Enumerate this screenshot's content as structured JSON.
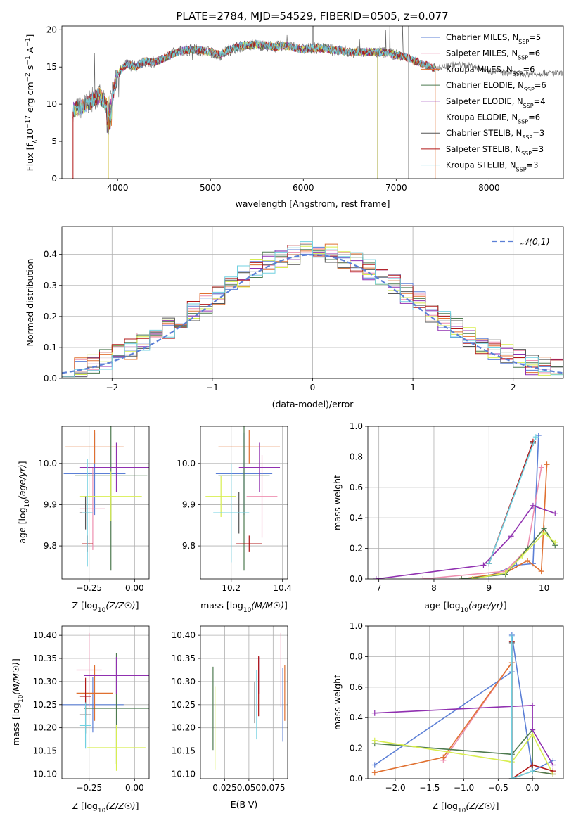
{
  "figure_title": "PLATE=2784, MJD=54529, FIBERID=0505, z=0.077",
  "colors": {
    "series": [
      "#5b7fd6",
      "#ee8fb0",
      "#e07030",
      "#4e7a50",
      "#9030b0",
      "#d8ee50",
      "#555555",
      "#b01818",
      "#70d0e0"
    ]
  },
  "chart_data": [
    {
      "id": "spectrum",
      "type": "line",
      "title": "PLATE=2784, MJD=54529, FIBERID=0505, z=0.077",
      "xlabel": "wavelength [Angstrom, rest frame]",
      "ylabel": "Flux [f_λ 10^-17 erg cm^-2 s^-1 A^-1]",
      "ylabel_parts": {
        "pre": "Flux [f",
        "sub": "λ",
        "mid": "10",
        "sup1": "−17",
        "mid2": " erg cm",
        "sup2": "−2",
        "mid3": " s",
        "sup3": "−1",
        "mid4": " A",
        "sup4": "−1",
        "post": "]"
      },
      "xlim": [
        3400,
        8800
      ],
      "ylim": [
        0,
        20.5
      ],
      "xticks": [
        4000,
        5000,
        6000,
        7000,
        8000
      ],
      "yticks": [
        0,
        5,
        10,
        15,
        20
      ],
      "grid": false,
      "legend_position": "top-right",
      "legend": [
        {
          "base": "Chabrier MILES, N",
          "sub": "SSP",
          "tail": "=5"
        },
        {
          "base": "Salpeter MILES, N",
          "sub": "SSP",
          "tail": "=6"
        },
        {
          "base": "Kroupa MILES, N",
          "sub": "SSP",
          "tail": "=6"
        },
        {
          "base": "Chabrier ELODIE, N",
          "sub": "SSP",
          "tail": "=6"
        },
        {
          "base": "Salpeter ELODIE, N",
          "sub": "SSP",
          "tail": "=4"
        },
        {
          "base": "Kroupa ELODIE, N",
          "sub": "SSP",
          "tail": "=6"
        },
        {
          "base": "Chabrier STELIB, N",
          "sub": "SSP",
          "tail": "=3"
        },
        {
          "base": "Salpeter STELIB, N",
          "sub": "SSP",
          "tail": "=3"
        },
        {
          "base": "Kroupa STELIB, N",
          "sub": "SSP",
          "tail": "=3"
        }
      ],
      "continuum": {
        "x": [
          3520,
          3600,
          3700,
          3800,
          3900,
          3950,
          4000,
          4100,
          4200,
          4300,
          4400,
          4500,
          4600,
          4700,
          4800,
          4900,
          5000,
          5100,
          5200,
          5300,
          5400,
          5500,
          5600,
          5700,
          5800,
          5900,
          6000,
          6100,
          6200,
          6300,
          6400,
          6500,
          6600,
          6700,
          6800,
          6900,
          7000,
          7100,
          7200,
          7300,
          7400
        ],
        "y": [
          9.2,
          9.5,
          10.3,
          11.2,
          9.4,
          11.5,
          14.0,
          15.4,
          15.0,
          15.8,
          15.6,
          16.2,
          16.8,
          17.2,
          17.3,
          17.2,
          17.0,
          16.6,
          17.3,
          17.7,
          17.9,
          18.0,
          17.9,
          17.7,
          17.9,
          17.6,
          17.4,
          17.5,
          17.5,
          17.3,
          17.2,
          17.0,
          17.0,
          17.0,
          17.0,
          16.9,
          16.6,
          16.3,
          15.8,
          15.3,
          14.9
        ]
      },
      "observed_tail": {
        "x": [
          7420,
          7600,
          7800,
          8000,
          8200,
          8400,
          8600,
          8800
        ],
        "y": [
          14.8,
          15.3,
          15.2,
          14.5,
          14.2,
          14.0,
          14.2,
          14.1
        ]
      }
    },
    {
      "id": "residuals",
      "type": "histogram",
      "xlabel": "(data-model)/error",
      "ylabel": "Normed distribution",
      "xlim": [
        -2.5,
        2.5
      ],
      "ylim": [
        0,
        0.49
      ],
      "xticks": [
        -2,
        -1,
        0,
        1,
        2
      ],
      "yticks": [
        0.0,
        0.1,
        0.2,
        0.3,
        0.4
      ],
      "grid": true,
      "legend_position": "top-right",
      "normal_curve_label": "𝒩(0,1)",
      "bins": 40
    },
    {
      "id": "age_vs_Z",
      "type": "scatter",
      "xlabel": "Z [log10(Z/Z☉)]",
      "ylabel": "age  [log10(age/yr)]",
      "xlim": [
        -0.4,
        0.08
      ],
      "ylim": [
        9.72,
        10.09
      ],
      "xticks": [
        -0.25,
        0.0
      ],
      "yticks": [
        9.8,
        9.9,
        10.0
      ],
      "grid": true,
      "points": [
        {
          "x": -0.22,
          "y": 9.975,
          "xerr": 0.17,
          "yerr": 0.1
        },
        {
          "x": -0.23,
          "y": 9.89,
          "xerr": 0.07,
          "yerr": 0.1
        },
        {
          "x": -0.22,
          "y": 10.04,
          "xerr": 0.16,
          "yerr": 0.04
        },
        {
          "x": -0.13,
          "y": 9.97,
          "xerr": 0.2,
          "yerr": 0.23
        },
        {
          "x": -0.1,
          "y": 9.99,
          "xerr": 0.2,
          "yerr": 0.06
        },
        {
          "x": -0.13,
          "y": 9.92,
          "xerr": 0.17,
          "yerr": 0.06
        },
        {
          "x": -0.27,
          "y": 9.88,
          "xerr": 0.03,
          "yerr": 0.04
        },
        {
          "x": -0.26,
          "y": 9.805,
          "xerr": 0.03,
          "yerr": 0.02
        },
        {
          "x": -0.26,
          "y": 9.88,
          "xerr": 0.03,
          "yerr": 0.13
        }
      ]
    },
    {
      "id": "age_vs_mass",
      "type": "scatter",
      "xlabel": "mass [log10(M/M☉)]",
      "xlim": [
        10.08,
        10.42
      ],
      "ylim": [
        9.72,
        10.09
      ],
      "xticks": [
        10.2,
        10.4
      ],
      "yticks": [
        9.8,
        9.9,
        10.0
      ],
      "grid": true,
      "points": [
        {
          "x": 10.25,
          "y": 9.975,
          "xerr": 0.11,
          "yerr": 0.1
        },
        {
          "x": 10.32,
          "y": 9.92,
          "xerr": 0.06,
          "yerr": 0.1
        },
        {
          "x": 10.27,
          "y": 10.04,
          "xerr": 0.12,
          "yerr": 0.04
        },
        {
          "x": 10.25,
          "y": 9.97,
          "xerr": 0.1,
          "yerr": 0.23
        },
        {
          "x": 10.31,
          "y": 9.99,
          "xerr": 0.08,
          "yerr": 0.06
        },
        {
          "x": 10.16,
          "y": 9.92,
          "xerr": 0.06,
          "yerr": 0.05
        },
        {
          "x": 10.23,
          "y": 9.88,
          "xerr": 0.03,
          "yerr": 0.05
        },
        {
          "x": 10.27,
          "y": 9.805,
          "xerr": 0.05,
          "yerr": 0.02
        },
        {
          "x": 10.2,
          "y": 9.88,
          "xerr": 0.07,
          "yerr": 0.12
        }
      ]
    },
    {
      "id": "mass_weight_vs_age",
      "type": "line",
      "xlabel": "age  [log10(age/yr)]",
      "ylabel": "mass weight",
      "xlim": [
        6.8,
        10.35
      ],
      "ylim": [
        0,
        1.0
      ],
      "xticks": [
        7,
        8,
        9,
        10
      ],
      "yticks": [
        0.0,
        0.2,
        0.4,
        0.6,
        0.8,
        1.0
      ],
      "grid": true,
      "series": [
        {
          "x": [
            9.0,
            9.5,
            9.8,
            9.9
          ],
          "y": [
            0.02,
            0.09,
            0.1,
            0.94
          ]
        },
        {
          "x": [
            7.8,
            9.3,
            9.7,
            9.95
          ],
          "y": [
            0.0,
            0.05,
            0.2,
            0.73
          ]
        },
        {
          "x": [
            8.5,
            9.3,
            9.7,
            9.95,
            10.05
          ],
          "y": [
            0.0,
            0.04,
            0.12,
            0.05,
            0.75
          ]
        },
        {
          "x": [
            8.5,
            9.3,
            9.7,
            10.0,
            10.2
          ],
          "y": [
            0.0,
            0.03,
            0.2,
            0.33,
            0.22
          ]
        },
        {
          "x": [
            6.95,
            8.9,
            9.4,
            9.8,
            10.2
          ],
          "y": [
            0.0,
            0.09,
            0.28,
            0.48,
            0.43
          ]
        },
        {
          "x": [
            8.7,
            9.3,
            9.6,
            10.0,
            10.2
          ],
          "y": [
            0.0,
            0.04,
            0.15,
            0.3,
            0.24
          ]
        },
        {
          "x": [
            9.0,
            9.8
          ],
          "y": [
            0.1,
            0.89
          ]
        },
        {
          "x": [
            9.0,
            9.8
          ],
          "y": [
            0.1,
            0.9
          ]
        },
        {
          "x": [
            9.0,
            9.85
          ],
          "y": [
            0.1,
            0.93
          ]
        }
      ]
    },
    {
      "id": "mass_vs_Z",
      "type": "scatter",
      "xlabel": "Z [log10(Z/Z☉)]",
      "ylabel": "mass [log10(M/M☉)]",
      "xlim": [
        -0.4,
        0.08
      ],
      "ylim": [
        10.09,
        10.42
      ],
      "xticks": [
        -0.25,
        0.0
      ],
      "yticks": [
        10.1,
        10.15,
        10.2,
        10.25,
        10.3,
        10.35,
        10.4
      ],
      "grid": true,
      "points": [
        {
          "x": -0.23,
          "y": 10.25,
          "xerr": 0.17,
          "yerr": 0.06
        },
        {
          "x": -0.25,
          "y": 10.325,
          "xerr": 0.07,
          "yerr": 0.08
        },
        {
          "x": -0.22,
          "y": 10.275,
          "xerr": 0.1,
          "yerr": 0.06
        },
        {
          "x": -0.1,
          "y": 10.242,
          "xerr": 0.18,
          "yerr": 0.12
        },
        {
          "x": -0.1,
          "y": 10.313,
          "xerr": 0.18,
          "yerr": 0.04
        },
        {
          "x": -0.1,
          "y": 10.157,
          "xerr": 0.16,
          "yerr": 0.05
        },
        {
          "x": -0.27,
          "y": 10.228,
          "xerr": 0.03,
          "yerr": 0.04
        },
        {
          "x": -0.27,
          "y": 10.268,
          "xerr": 0.03,
          "yerr": 0.04
        },
        {
          "x": -0.27,
          "y": 10.205,
          "xerr": 0.03,
          "yerr": 0.05
        }
      ]
    },
    {
      "id": "mass_vs_EBV",
      "type": "scatter",
      "xlabel": "E(B-V)",
      "xlim": [
        0.0,
        0.09
      ],
      "ylim": [
        10.09,
        10.42
      ],
      "xticks": [
        0.025,
        0.05,
        0.075
      ],
      "yticks": [
        10.1,
        10.15,
        10.2,
        10.25,
        10.3,
        10.35,
        10.4
      ],
      "grid": true,
      "points": [
        {
          "x": 0.085,
          "y": 10.25,
          "yerr": 0.08
        },
        {
          "x": 0.083,
          "y": 10.325,
          "yerr": 0.08
        },
        {
          "x": 0.087,
          "y": 10.275,
          "yerr": 0.06
        },
        {
          "x": 0.013,
          "y": 10.242,
          "yerr": 0.09
        },
        {
          "x": 0.06,
          "y": 10.313,
          "yerr": 0.04
        },
        {
          "x": 0.015,
          "y": 10.2,
          "yerr": 0.09
        },
        {
          "x": 0.056,
          "y": 10.255,
          "yerr": 0.045
        },
        {
          "x": 0.06,
          "y": 10.29,
          "yerr": 0.065
        },
        {
          "x": 0.058,
          "y": 10.25,
          "yerr": 0.075
        }
      ]
    },
    {
      "id": "mass_weight_vs_Z",
      "type": "line",
      "xlabel": "Z [log10(Z/Z☉)]",
      "ylabel": "mass weight",
      "xlim": [
        -2.4,
        0.45
      ],
      "ylim": [
        0,
        1.0
      ],
      "xticks": [
        -2.0,
        -1.5,
        -1.0,
        -0.5,
        0.0
      ],
      "yticks": [
        0.0,
        0.2,
        0.4,
        0.6,
        0.8,
        1.0
      ],
      "grid": true,
      "series": [
        {
          "x": [
            -2.3,
            -0.3,
            -0.3,
            0.0,
            0.3
          ],
          "y": [
            0.09,
            0.7,
            0.94,
            0.05,
            0.12
          ]
        },
        {
          "x": [
            -1.3,
            -0.3,
            -0.3,
            0.0
          ],
          "y": [
            0.12,
            0.76,
            0.0,
            0.05
          ]
        },
        {
          "x": [
            -2.3,
            -1.3,
            -0.3,
            -0.3,
            0.0,
            0.3
          ],
          "y": [
            0.04,
            0.14,
            0.76,
            0.0,
            0.05,
            0.03
          ]
        },
        {
          "x": [
            -2.3,
            -0.3,
            0.0,
            0.0,
            0.3
          ],
          "y": [
            0.23,
            0.16,
            0.32,
            0.05,
            0.03
          ]
        },
        {
          "x": [
            -2.3,
            0.0,
            0.0,
            0.3
          ],
          "y": [
            0.43,
            0.48,
            0.32,
            0.09
          ]
        },
        {
          "x": [
            -2.3,
            -0.3,
            0.0,
            0.3
          ],
          "y": [
            0.25,
            0.11,
            0.29,
            0.03
          ]
        },
        {
          "x": [
            -0.3,
            -0.3,
            0.0
          ],
          "y": [
            0.89,
            0.0,
            0.0
          ]
        },
        {
          "x": [
            -0.3,
            -0.3,
            0.0,
            0.3
          ],
          "y": [
            0.9,
            0.0,
            0.09,
            0.05
          ]
        },
        {
          "x": [
            -0.3,
            -0.3,
            0.0
          ],
          "y": [
            0.93,
            0.0,
            0.05
          ]
        }
      ]
    }
  ]
}
